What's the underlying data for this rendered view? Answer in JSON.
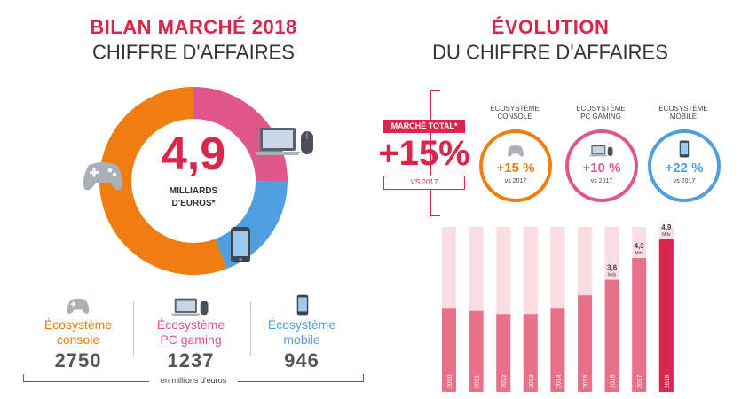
{
  "left": {
    "title_line1": "BILAN MARCHÉ 2018",
    "title_line2": "CHIFFRE D'AFFAIRES",
    "total_value": "4,9",
    "total_unit_line1": "MILLIARDS",
    "total_unit_line2": "D'EUROS*",
    "ecosystems": [
      {
        "label_line1": "Écosystème",
        "label_line2": "console",
        "value": "2750",
        "color": "#ef7d0f",
        "icon": "gamepad-icon"
      },
      {
        "label_line1": "Écosystème",
        "label_line2": "PC gaming",
        "value": "1237",
        "color": "#e05688",
        "icon": "laptop-mouse-icon"
      },
      {
        "label_line1": "Écosystème",
        "label_line2": "mobile",
        "value": "946",
        "color": "#4f9fde",
        "icon": "smartphone-icon"
      }
    ],
    "footnote": "en millions d'euros"
  },
  "right": {
    "title_line1": "ÉVOLUTION",
    "title_line2": "DU CHIFFRE D'AFFAIRES",
    "market_label": "MARCHÉ TOTAL*",
    "market_growth": "+15%",
    "market_vs": "VS 2017",
    "segments": [
      {
        "head_line1": "ÉCOSYSTÈME",
        "head_line2": "CONSOLE",
        "growth": "+15 %",
        "vs": "vs 2017",
        "color": "#ef7d0f",
        "icon": "gamepad-icon"
      },
      {
        "head_line1": "ÉCOSYSTÈME",
        "head_line2": "PC GAMING",
        "growth": "+10 %",
        "vs": "vs 2017",
        "color": "#e05688",
        "icon": "laptop-mouse-icon"
      },
      {
        "head_line1": "ÉCOSYSTÈME",
        "head_line2": "MOBILE",
        "growth": "+22 %",
        "vs": "vs 2017",
        "color": "#4f9fde",
        "icon": "smartphone-icon"
      }
    ]
  },
  "chart_data": [
    {
      "type": "pie",
      "title": "CHIFFRE D'AFFAIRES",
      "categories": [
        "Écosystème console",
        "Écosystème PC gaming",
        "Écosystème mobile"
      ],
      "values": [
        2750,
        1237,
        946
      ],
      "colors": [
        "#ef7d0f",
        "#e05688",
        "#4f9fde"
      ],
      "center_label": "4,9 MILLIARDS D'EUROS*",
      "unit": "en millions d'euros"
    },
    {
      "type": "bar",
      "title": "ÉVOLUTION DU CHIFFRE D'AFFAIRES",
      "categories": [
        "2010",
        "2011",
        "2012",
        "2013",
        "2014",
        "2015",
        "2016",
        "2017",
        "2018"
      ],
      "values": [
        2.7,
        2.6,
        2.5,
        2.5,
        2.7,
        3.1,
        3.6,
        4.3,
        4.9
      ],
      "data_labels": [
        "",
        "",
        "",
        "",
        "",
        "",
        "3,6",
        "4,3",
        "4,9"
      ],
      "data_label_unit": "Mds",
      "ylim": [
        0,
        5.3
      ],
      "bar_color": "#e8718a",
      "highlight_color": "#d9264a",
      "track_color": "#fbdde4"
    }
  ]
}
